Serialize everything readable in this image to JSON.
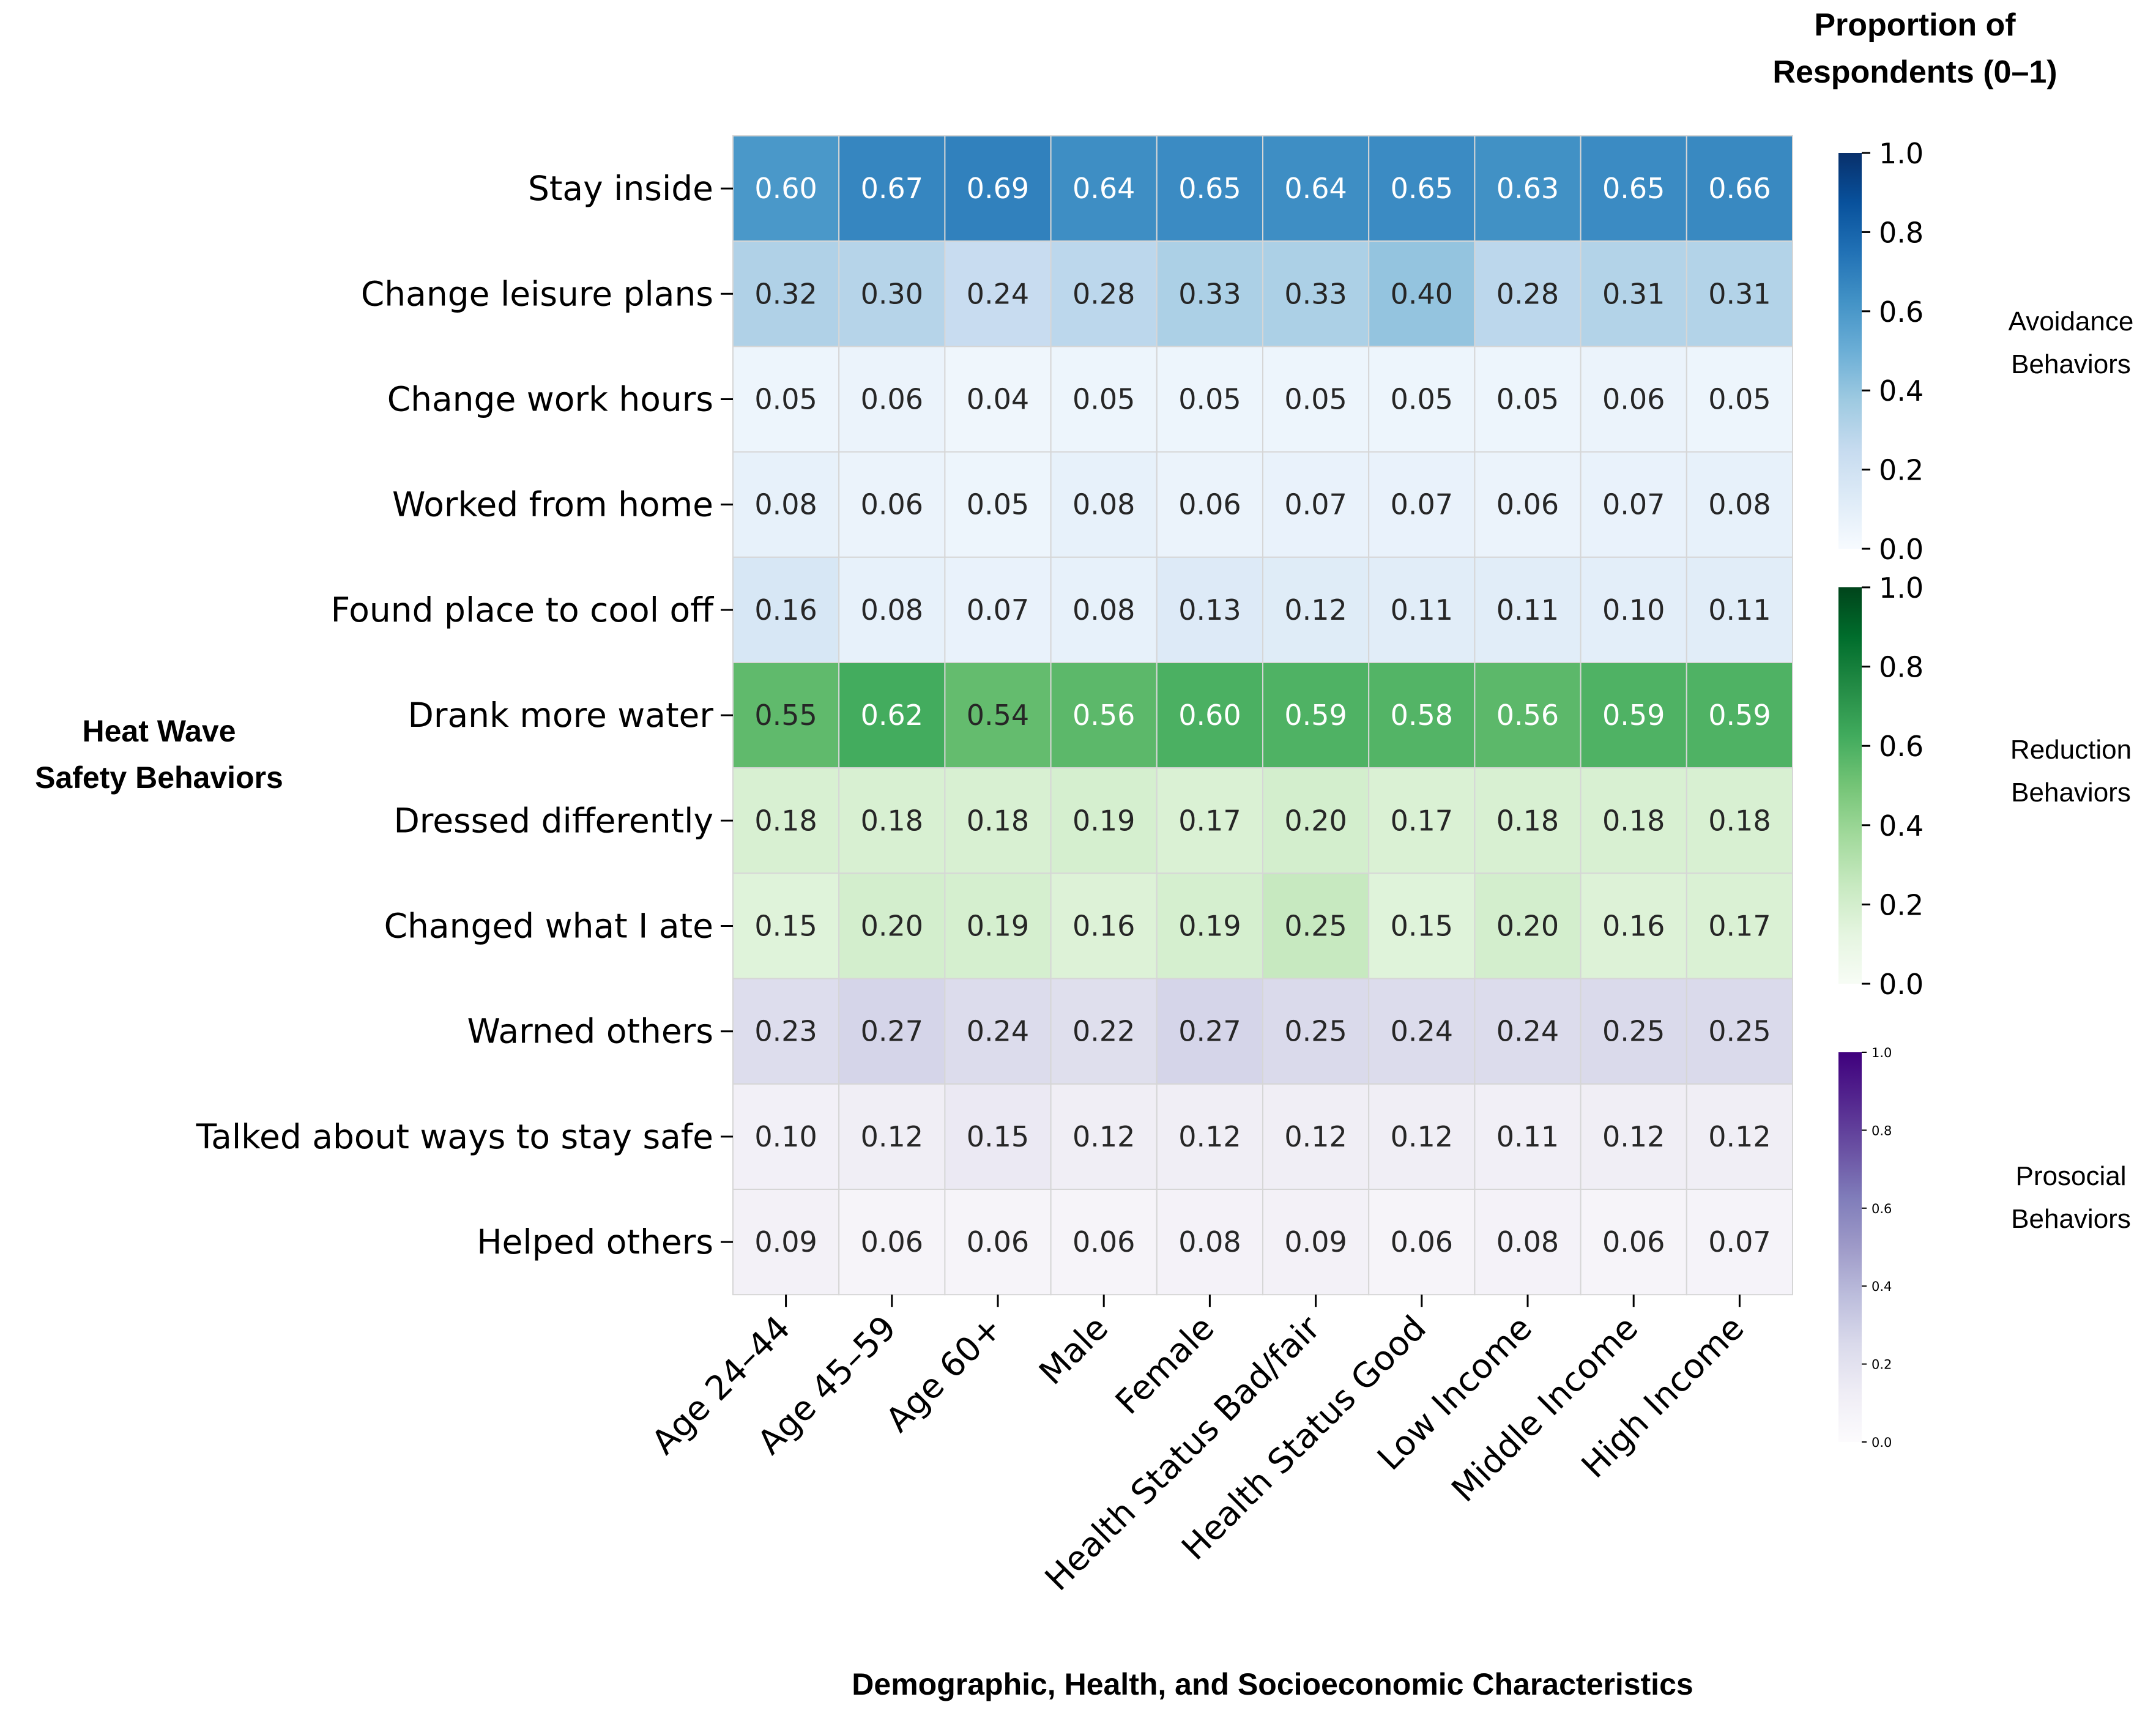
{
  "chart_data": {
    "type": "heatmap",
    "title": "",
    "xlabel": "Demographic, Health, and Socioeconomic Characteristics",
    "ylabel_lines": [
      "Heat Wave",
      "Safety Behaviors"
    ],
    "colorbar_title_lines": [
      "Proportion of",
      "Respondents (0–1)"
    ],
    "columns": [
      "Age 24–44",
      "Age 45–59",
      "Age 60+",
      "Male",
      "Female",
      "Health Status Bad/fair",
      "Health Status Good",
      "Low Income",
      "Middle Income",
      "High Income"
    ],
    "groups": [
      {
        "name_lines": [
          "Avoidance",
          "Behaviors"
        ],
        "palette": "Blues",
        "range": [
          0,
          1
        ],
        "ticks": [
          "0.0",
          "0.2",
          "0.4",
          "0.6",
          "0.8",
          "1.0"
        ],
        "rows": [
          {
            "label": "Stay inside",
            "values": [
              0.6,
              0.67,
              0.69,
              0.64,
              0.65,
              0.64,
              0.65,
              0.63,
              0.65,
              0.66
            ]
          },
          {
            "label": "Change leisure plans",
            "values": [
              0.32,
              0.3,
              0.24,
              0.28,
              0.33,
              0.33,
              0.4,
              0.28,
              0.31,
              0.31
            ]
          },
          {
            "label": "Change work hours",
            "values": [
              0.05,
              0.06,
              0.04,
              0.05,
              0.05,
              0.05,
              0.05,
              0.05,
              0.06,
              0.05
            ]
          },
          {
            "label": "Worked from home",
            "values": [
              0.08,
              0.06,
              0.05,
              0.08,
              0.06,
              0.07,
              0.07,
              0.06,
              0.07,
              0.08
            ]
          },
          {
            "label": "Found place to cool off",
            "values": [
              0.16,
              0.08,
              0.07,
              0.08,
              0.13,
              0.12,
              0.11,
              0.11,
              0.1,
              0.11
            ]
          }
        ]
      },
      {
        "name_lines": [
          "Reduction",
          "Behaviors"
        ],
        "palette": "Greens",
        "range": [
          0,
          1
        ],
        "ticks": [
          "0.0",
          "0.2",
          "0.4",
          "0.6",
          "0.8",
          "1.0"
        ],
        "rows": [
          {
            "label": "Drank more water",
            "values": [
              0.55,
              0.62,
              0.54,
              0.56,
              0.6,
              0.59,
              0.58,
              0.56,
              0.59,
              0.59
            ]
          },
          {
            "label": "Dressed differently",
            "values": [
              0.18,
              0.18,
              0.18,
              0.19,
              0.17,
              0.2,
              0.17,
              0.18,
              0.18,
              0.18
            ]
          },
          {
            "label": "Changed what I ate",
            "values": [
              0.15,
              0.2,
              0.19,
              0.16,
              0.19,
              0.25,
              0.15,
              0.2,
              0.16,
              0.17
            ]
          }
        ]
      },
      {
        "name_lines": [
          "Prosocial",
          "Behaviors"
        ],
        "palette": "Purples",
        "range": [
          0,
          1
        ],
        "ticks": [
          "0.0",
          "0.2",
          "0.4",
          "0.6",
          "0.8",
          "1.0"
        ],
        "rows": [
          {
            "label": "Warned others",
            "values": [
              0.23,
              0.27,
              0.24,
              0.22,
              0.27,
              0.25,
              0.24,
              0.24,
              0.25,
              0.25
            ]
          },
          {
            "label": "Talked about ways to stay safe",
            "values": [
              0.1,
              0.12,
              0.15,
              0.12,
              0.12,
              0.12,
              0.12,
              0.11,
              0.12,
              0.12
            ]
          },
          {
            "label": "Helped others",
            "values": [
              0.09,
              0.06,
              0.06,
              0.06,
              0.08,
              0.09,
              0.06,
              0.08,
              0.06,
              0.07
            ]
          }
        ]
      }
    ]
  },
  "colors": {
    "grid": "#d6d6d6",
    "text_dark": "#262626",
    "text_light": "#ffffff"
  }
}
